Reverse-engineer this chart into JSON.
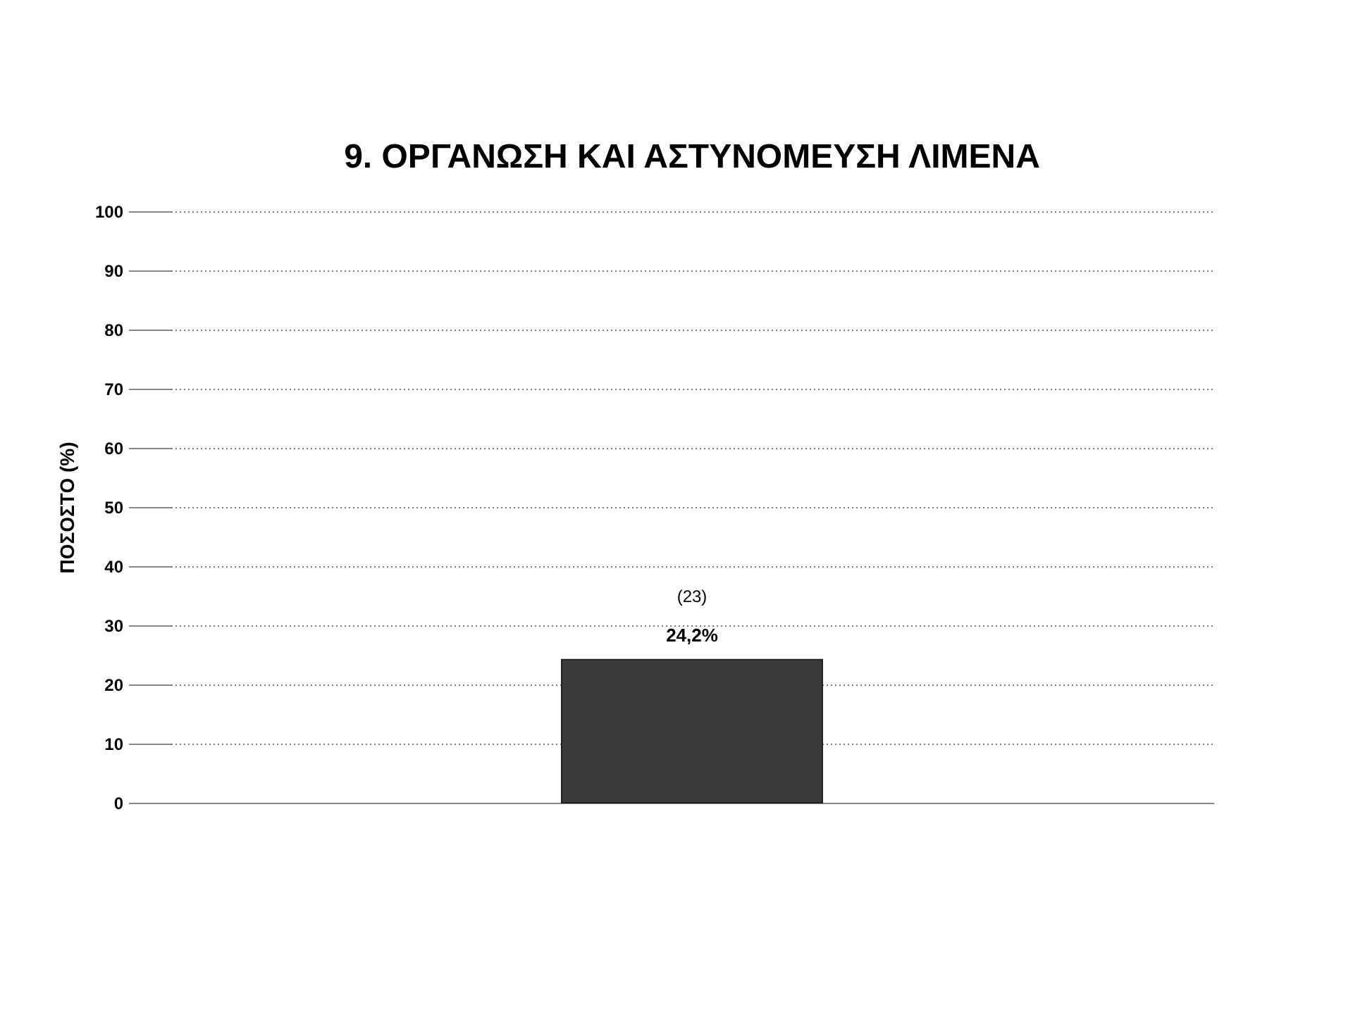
{
  "chart_data": {
    "type": "bar",
    "title": "9. ΟΡΓΑΝΩΣΗ ΚΑΙ ΑΣΤΥΝΟΜΕΥΣΗ ΛΙΜΕΝΑ",
    "ylabel": "ΠΟΣΟΣΤΟ (%)",
    "categories": [
      null
    ],
    "values": [
      24.2
    ],
    "value_labels": [
      "24,2%"
    ],
    "color": "#3a3a3a",
    "annotations": [
      "(23)"
    ],
    "ylim": [
      0,
      100
    ],
    "yticks": [
      0,
      10,
      20,
      30,
      40,
      50,
      60,
      70,
      80,
      90,
      100
    ],
    "grid": "y"
  }
}
